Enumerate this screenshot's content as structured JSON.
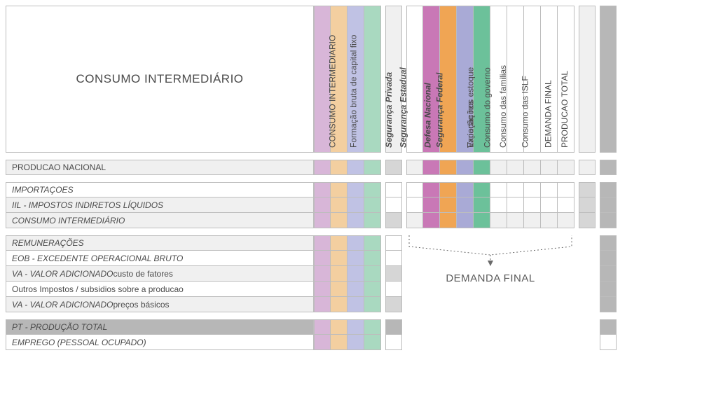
{
  "colors": {
    "c1": "#d8b6d8",
    "c2": "#f3cfa0",
    "c3": "#c0c2e4",
    "c4": "#a9d9c0",
    "grey_light": "#f0f0f0",
    "grey_mid": "#d6d6d6",
    "grey_dark": "#b7b7b7",
    "white": "#ffffff",
    "hi1": "#c978b6",
    "hi2": "#f0a554",
    "hi3": "#a9aad6",
    "hi4": "#6cc19a"
  },
  "header": {
    "main": "CONSUMO INTERMEDIÁRIO",
    "ci_col": "CONSUMO INTERMEDIARIO"
  },
  "right_header": {
    "cols": [
      {
        "label": "Formação bruta de capital fixo",
        "bg": "white",
        "it": false
      },
      {
        "label": "Segurança Privada",
        "bg": "hi1",
        "it": true
      },
      {
        "label": "Segurança Estadual",
        "bg": "hi2",
        "it": true
      },
      {
        "label": "Defesa Nacional",
        "bg": "hi3",
        "it": true
      },
      {
        "label": "Segurança Federal",
        "bg": "hi4",
        "it": true
      },
      {
        "label": "Exportações",
        "bg": "white",
        "it": false
      },
      {
        "label": "Variação nos estoque",
        "bg": "white",
        "it": false
      },
      {
        "label": "Consumo do governo",
        "bg": "white",
        "it": false
      },
      {
        "label": "Consumo das familias",
        "bg": "white",
        "it": false
      },
      {
        "label": "Consumo das ISLF",
        "bg": "white",
        "it": false
      }
    ]
  },
  "far_cols": {
    "df": "DEMANDA FINAL",
    "pt": "PRODUCAO TOTAL"
  },
  "rows_block1": [
    {
      "label": "PRODUCAO NACIONAL",
      "bg": "grey_light",
      "it": false,
      "ci": "grey_mid"
    }
  ],
  "rows_block2": [
    {
      "label": "IMPORTAÇOES",
      "bg": "white",
      "it": true,
      "ci": "white"
    },
    {
      "label": "IIL - IMPOSTOS INDIRETOS LÍQUIDOS",
      "bg": "grey_light",
      "it": true,
      "ci": "white"
    },
    {
      "label": "CONSUMO INTERMEDIÁRIO",
      "bg": "grey_light",
      "it": true,
      "ci": "grey_mid"
    }
  ],
  "rows_block3": [
    {
      "label": "REMUNERAÇÕES",
      "bg": "grey_light",
      "it": true,
      "ci": "white"
    },
    {
      "label": "EOB - EXCEDENTE OPERACIONAL BRUTO",
      "bg": "white",
      "it": true,
      "ci": "white"
    },
    {
      "label": "VA - VALOR ADICIONADO custo de fatores",
      "bg": "grey_light",
      "it": true,
      "ci": "grey_mid"
    },
    {
      "label": "Outros Impostos / subsidios sobre a producao",
      "bg": "white",
      "it": false,
      "ci": "white"
    },
    {
      "label": "VA - VALOR ADICIONADO preços básicos",
      "bg": "grey_light",
      "it": true,
      "ci": "grey_mid"
    }
  ],
  "rows_block4": [
    {
      "label": "PT - PRODUÇÃO TOTAL",
      "bg": "grey_dark",
      "it": true,
      "ci": "grey_dark"
    },
    {
      "label": "EMPREGO  (PESSOAL OCUPADO)",
      "bg": "white",
      "it": true,
      "ci": "white"
    }
  ],
  "right_row_bg": {
    "block1": [
      "grey_light"
    ],
    "block2": [
      "white",
      "white",
      "grey_light"
    ]
  },
  "bracket_label": "DEMANDA FINAL"
}
